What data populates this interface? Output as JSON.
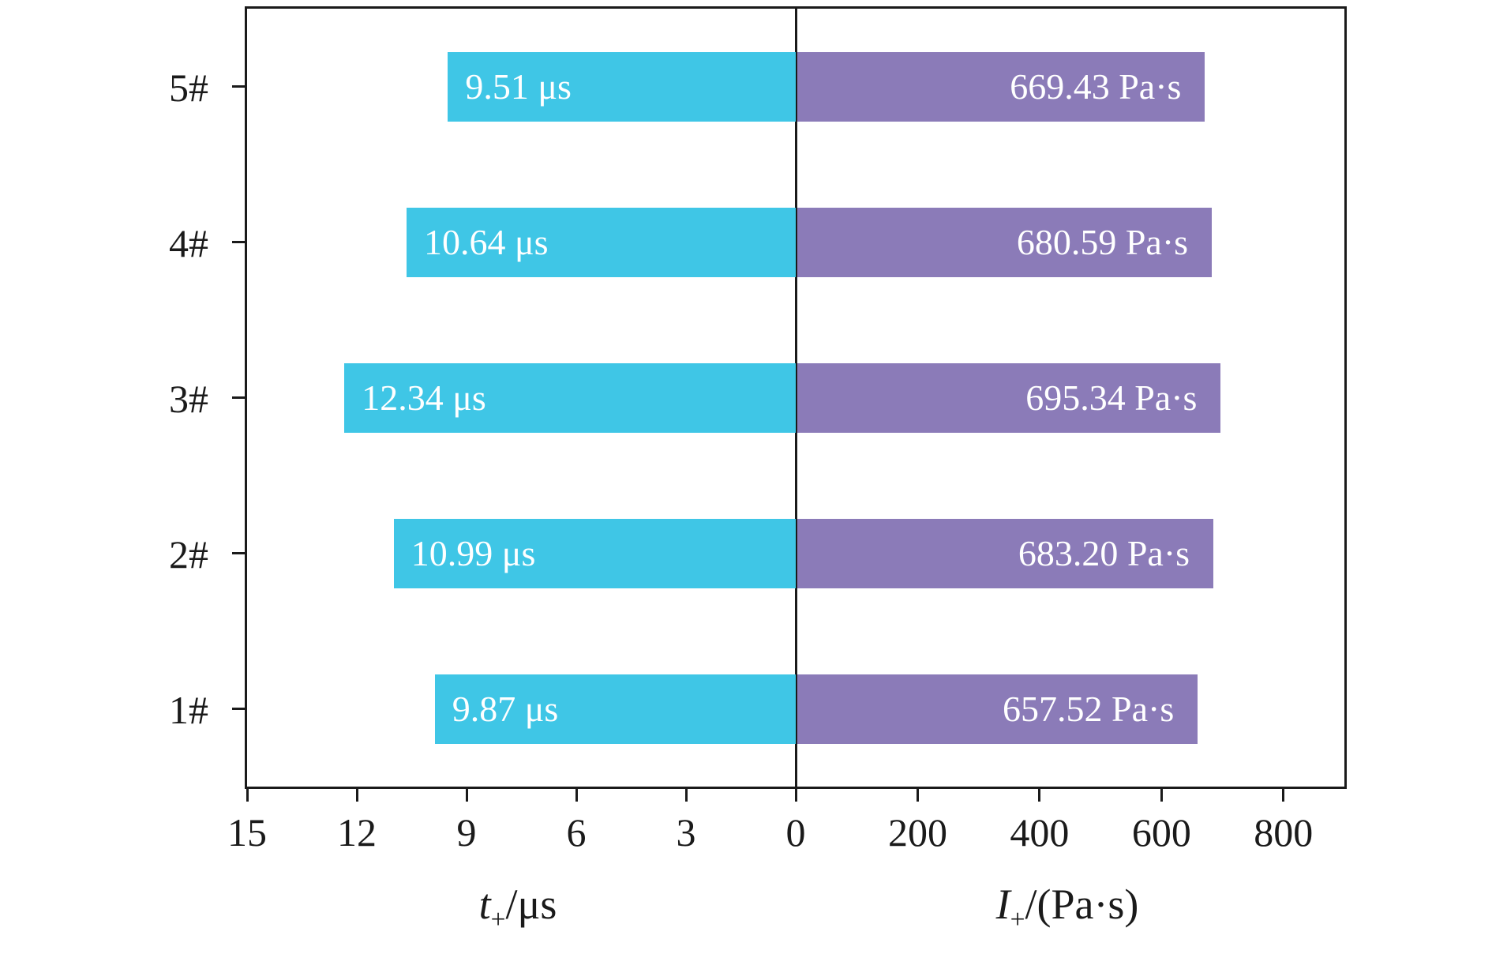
{
  "chart_data": {
    "type": "bar",
    "variant": "diverging-horizontal",
    "categories": [
      "5#",
      "4#",
      "3#",
      "2#",
      "1#"
    ],
    "series": [
      {
        "name": "t_plus_time",
        "side": "left",
        "unit": "μs",
        "color": "#3fc6e6",
        "axis_max": 15,
        "values": [
          9.51,
          10.64,
          12.34,
          10.99,
          9.87
        ],
        "bar_labels": [
          "9.51 μs",
          "10.64 μs",
          "12.34 μs",
          "10.99 μs",
          "9.87 μs"
        ],
        "ticks": [
          15,
          12,
          9,
          6,
          3,
          0
        ],
        "tick_labels": [
          "15",
          "12",
          "9",
          "6",
          "3",
          "0"
        ]
      },
      {
        "name": "I_plus_impulse",
        "side": "right",
        "unit": "Pa·s",
        "color": "#8b7bb8",
        "axis_max": 900,
        "values": [
          669.43,
          680.59,
          695.34,
          683.2,
          657.52
        ],
        "bar_labels": [
          "669.43 Pa·s",
          "680.59 Pa·s",
          "695.34 Pa·s",
          "683.20 Pa·s",
          "657.52 Pa·s"
        ],
        "ticks": [
          200,
          400,
          600,
          800
        ],
        "tick_labels": [
          "200",
          "400",
          "600",
          "800"
        ]
      }
    ],
    "xlabel_left": {
      "var": "t",
      "sub": "+",
      "rest": "/μs"
    },
    "xlabel_right": {
      "var": "I",
      "sub": "+",
      "rest": "/(Pa·s)"
    },
    "legend": "none",
    "grid": false,
    "bar_text_color": "#ffffff",
    "axis_color": "#1a1a1a"
  }
}
